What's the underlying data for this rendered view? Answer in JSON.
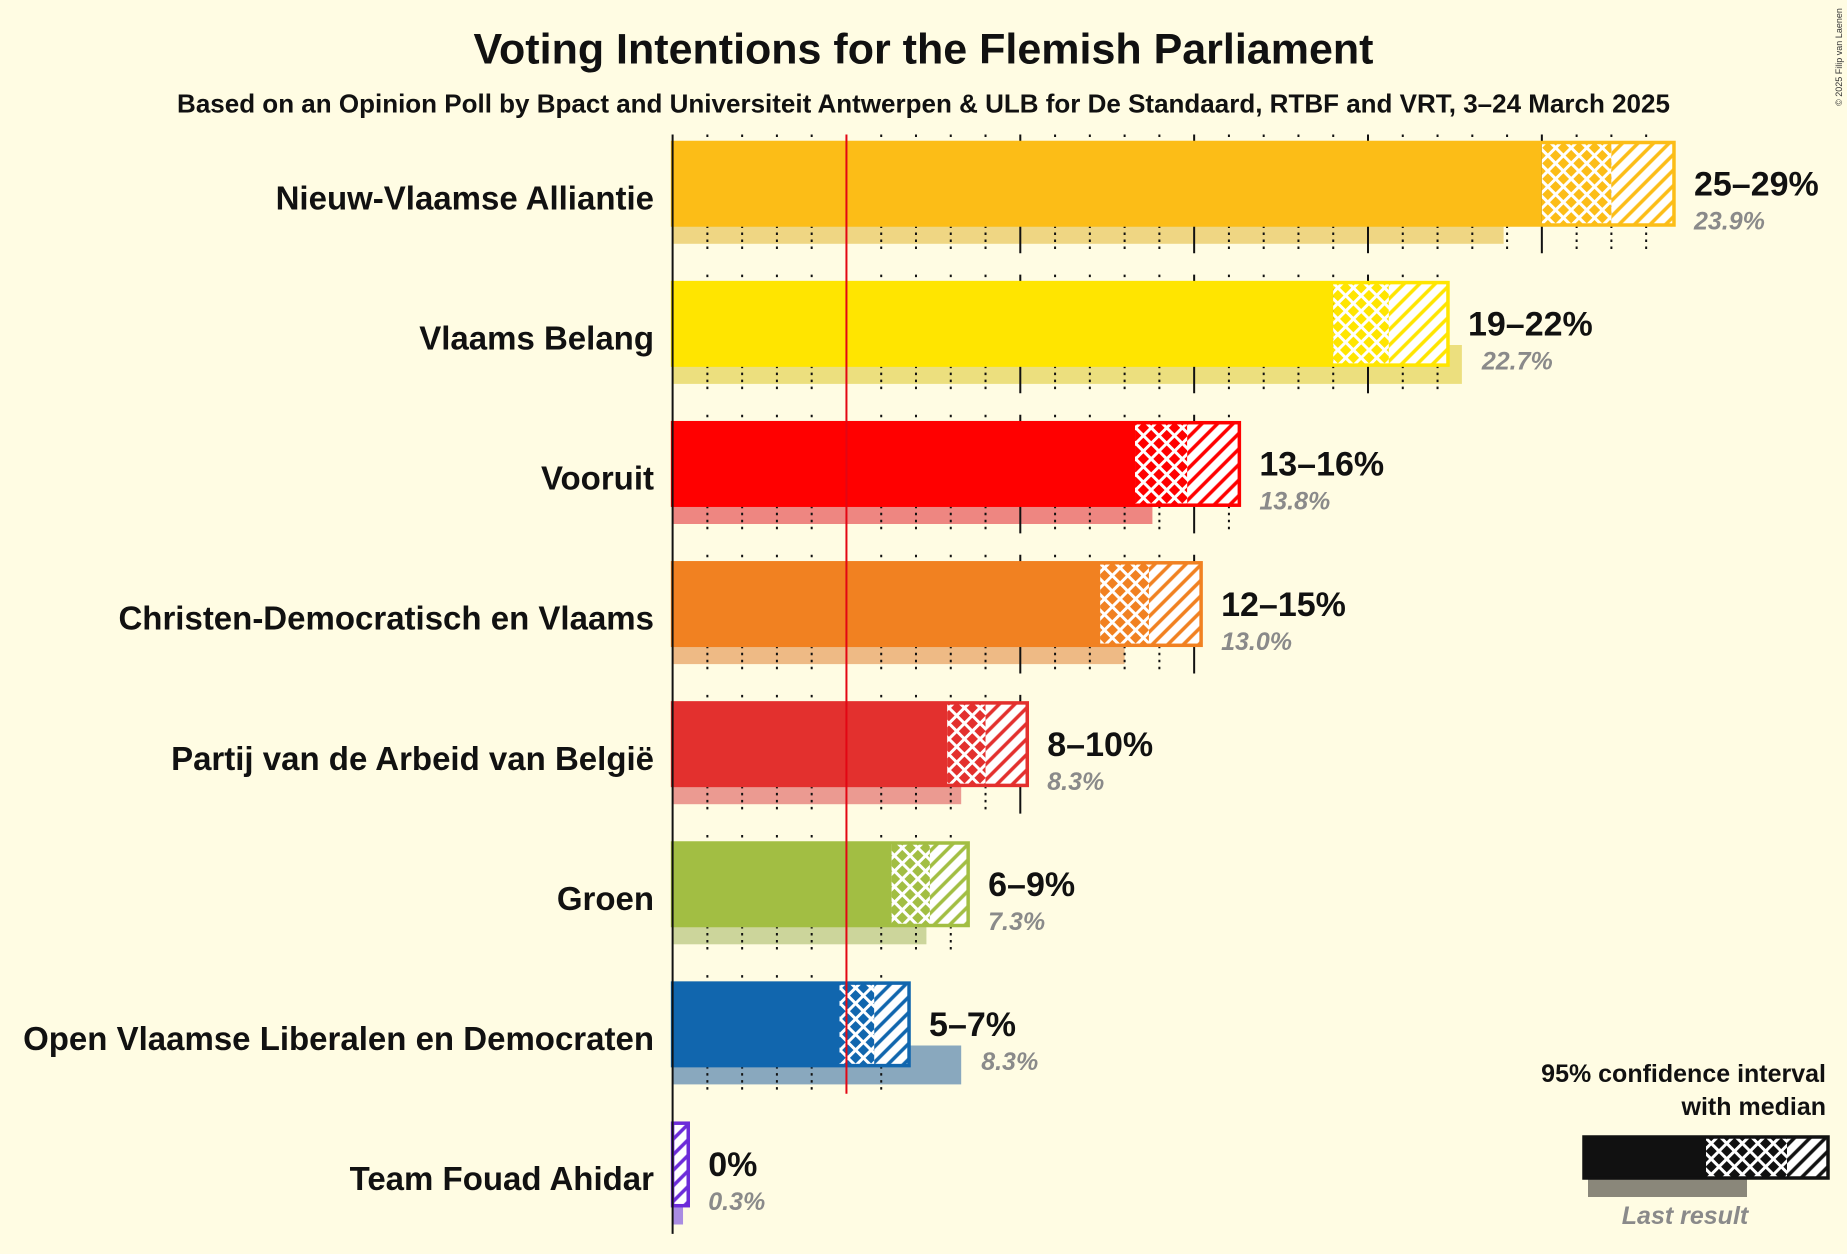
{
  "background": "#FFFCE3",
  "credit": "© 2025 Filip van Laenen",
  "chart_data": {
    "type": "bar",
    "title": "Voting Intentions for the Flemish Parliament",
    "subtitle": "Based on an Opinion Poll by Bpact and Universiteit Antwerpen & ULB for De Standaard, RTBF and VRT, 3–24 March 2025",
    "xlim": [
      0,
      30
    ],
    "grid": true,
    "grid_step": 1,
    "major_grid_step": 5,
    "threshold": 5,
    "threshold_color": "#E30613",
    "legend_placement": "bottom-right",
    "parties": [
      {
        "name": "Nieuw-Vlaamse Alliantie",
        "lower": 25.0,
        "median": 27.0,
        "upper": 28.8,
        "last": 23.9,
        "range_label": "25–29%",
        "last_label": "23.9%",
        "color": "#FCBD17",
        "last_color": "#EFD683"
      },
      {
        "name": "Vlaams Belang",
        "lower": 19.0,
        "median": 20.6,
        "upper": 22.3,
        "last": 22.7,
        "range_label": "19–22%",
        "last_label": "22.7%",
        "color": "#FFE500",
        "last_color": "#ECDF7E"
      },
      {
        "name": "Vooruit",
        "lower": 13.3,
        "median": 14.8,
        "upper": 16.3,
        "last": 13.8,
        "range_label": "13–16%",
        "last_label": "13.8%",
        "color": "#FF0000",
        "last_color": "#EE8681"
      },
      {
        "name": "Christen-Democratisch en Vlaams",
        "lower": 12.3,
        "median": 13.7,
        "upper": 15.2,
        "last": 13.0,
        "range_label": "12–15%",
        "last_label": "13.0%",
        "color": "#F18121",
        "last_color": "#EEBA85"
      },
      {
        "name": "Partij van de Arbeid van België",
        "lower": 7.9,
        "median": 9.0,
        "upper": 10.2,
        "last": 8.3,
        "range_label": "8–10%",
        "last_label": "8.3%",
        "color": "#E3302E",
        "last_color": "#EB9A91"
      },
      {
        "name": "Groen",
        "lower": 6.3,
        "median": 7.4,
        "upper": 8.5,
        "last": 7.3,
        "range_label": "6–9%",
        "last_label": "7.3%",
        "color": "#A2BE43",
        "last_color": "#CCD59B"
      },
      {
        "name": "Open Vlaamse Liberalen en Democraten",
        "lower": 4.8,
        "median": 5.8,
        "upper": 6.8,
        "last": 8.3,
        "range_label": "5–7%",
        "last_label": "8.3%",
        "color": "#1166AE",
        "last_color": "#89A8BE"
      },
      {
        "name": "Team Fouad Ahidar",
        "lower": 0.0,
        "median": 0.0,
        "upper": 0.45,
        "last": 0.3,
        "range_label": "0%",
        "last_label": "0.3%",
        "color": "#6C2BD9",
        "last_color": "#A98CE2"
      }
    ]
  },
  "legend": {
    "line1": "95% confidence interval",
    "line2": "with median",
    "last_result": "Last result",
    "color": "#111111",
    "last_color": "#8A877A"
  }
}
